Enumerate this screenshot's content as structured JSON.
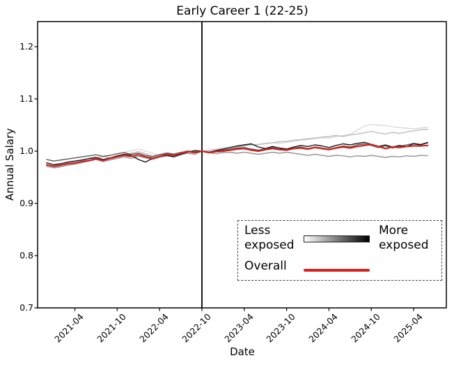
{
  "figure": {
    "background": "#ffffff"
  },
  "chart_data": {
    "type": "line",
    "title": "Early Career 1 (22-25)",
    "xlabel": "Date",
    "ylabel": "Annual Salary",
    "ylim": [
      0.7,
      1.248
    ],
    "yticks": [
      0.7,
      0.8,
      0.9,
      1.0,
      1.1,
      1.2
    ],
    "ytick_labels": [
      "0.7",
      "0.8",
      "0.9",
      "1.0",
      "1.1",
      "1.2"
    ],
    "grid": false,
    "x": [
      "2020-12",
      "2021-01",
      "2021-02",
      "2021-03",
      "2021-04",
      "2021-05",
      "2021-06",
      "2021-07",
      "2021-08",
      "2021-09",
      "2021-10",
      "2021-11",
      "2021-12",
      "2022-01",
      "2022-02",
      "2022-03",
      "2022-04",
      "2022-05",
      "2022-06",
      "2022-07",
      "2022-08",
      "2022-09",
      "2022-10",
      "2022-11",
      "2022-12",
      "2023-01",
      "2023-02",
      "2023-03",
      "2023-04",
      "2023-05",
      "2023-06",
      "2023-07",
      "2023-08",
      "2023-09",
      "2023-10",
      "2023-11",
      "2023-12",
      "2024-01",
      "2024-02",
      "2024-03",
      "2024-04",
      "2024-05",
      "2024-06",
      "2024-07",
      "2024-08",
      "2024-09",
      "2024-10",
      "2024-11",
      "2024-12",
      "2025-01",
      "2025-02",
      "2025-03",
      "2025-04",
      "2025-05",
      "2025-06"
    ],
    "x_ticks": {
      "labels": [
        "2021-04",
        "2021-10",
        "2022-04",
        "2022-10",
        "2023-04",
        "2023-10",
        "2024-04",
        "2024-10",
        "2025-04"
      ],
      "month_indices": [
        4,
        10,
        16,
        22,
        28,
        34,
        40,
        46,
        52
      ]
    },
    "event_line": {
      "month": "2022-10",
      "month_index": 22,
      "color": "#000000"
    },
    "series": [
      {
        "name": "exposure-q1-least-exposed",
        "color": "#d9d9d9",
        "width": 1.4,
        "values": [
          0.973,
          0.97,
          0.972,
          0.975,
          0.977,
          0.98,
          0.983,
          0.986,
          0.989,
          0.992,
          0.995,
          0.998,
          1.001,
          1.004,
          1.0,
          0.996,
          0.992,
          0.995,
          0.993,
          0.996,
          0.999,
          1.002,
          1.0,
          1.002,
          1.004,
          1.006,
          1.008,
          1.01,
          1.011,
          1.013,
          1.012,
          1.014,
          1.016,
          1.015,
          1.017,
          1.019,
          1.021,
          1.022,
          1.024,
          1.026,
          1.025,
          1.028,
          1.03,
          1.032,
          1.04,
          1.048,
          1.051,
          1.05,
          1.049,
          1.047,
          1.045,
          1.044,
          1.043,
          1.044,
          1.046
        ]
      },
      {
        "name": "exposure-q2",
        "color": "#bdbdbd",
        "width": 1.4,
        "values": [
          0.975,
          0.972,
          0.974,
          0.977,
          0.979,
          0.982,
          0.984,
          0.987,
          0.99,
          0.987,
          0.99,
          0.993,
          0.996,
          0.999,
          0.995,
          0.991,
          0.994,
          0.997,
          0.995,
          0.998,
          1.001,
          0.999,
          1.0,
          1.001,
          1.003,
          1.005,
          1.007,
          1.008,
          1.01,
          1.012,
          1.013,
          1.015,
          1.016,
          1.018,
          1.019,
          1.021,
          1.022,
          1.024,
          1.025,
          1.027,
          1.028,
          1.03,
          1.028,
          1.031,
          1.033,
          1.035,
          1.038,
          1.035,
          1.033,
          1.036,
          1.034,
          1.037,
          1.039,
          1.041,
          1.042
        ]
      },
      {
        "name": "exposure-q3",
        "color": "#969696",
        "width": 1.4,
        "values": [
          0.971,
          0.968,
          0.97,
          0.973,
          0.975,
          0.978,
          0.981,
          0.984,
          0.98,
          0.983,
          0.986,
          0.989,
          0.986,
          0.99,
          0.987,
          0.984,
          0.988,
          0.991,
          0.989,
          0.993,
          0.996,
          0.994,
          1.0,
          0.997,
          0.995,
          0.997,
          0.998,
          0.996,
          0.998,
          0.996,
          0.994,
          0.996,
          0.998,
          0.996,
          0.998,
          0.996,
          0.994,
          0.992,
          0.994,
          0.992,
          0.99,
          0.992,
          0.991,
          0.989,
          0.991,
          0.99,
          0.992,
          0.99,
          0.988,
          0.99,
          0.989,
          0.991,
          0.99,
          0.992,
          0.991
        ]
      },
      {
        "name": "exposure-q4",
        "color": "#585858",
        "width": 1.4,
        "values": [
          0.984,
          0.981,
          0.983,
          0.985,
          0.987,
          0.989,
          0.991,
          0.993,
          0.99,
          0.992,
          0.995,
          0.997,
          0.994,
          0.996,
          0.992,
          0.989,
          0.993,
          0.996,
          0.994,
          0.997,
          1.0,
          0.998,
          1.0,
          0.998,
          1.0,
          1.002,
          1.004,
          1.006,
          1.007,
          1.004,
          1.002,
          1.005,
          1.007,
          1.004,
          1.003,
          1.006,
          1.008,
          1.005,
          1.008,
          1.006,
          1.004,
          1.007,
          1.01,
          1.008,
          1.012,
          1.014,
          1.011,
          1.007,
          1.01,
          1.006,
          1.009,
          1.012,
          1.015,
          1.013,
          1.017
        ]
      },
      {
        "name": "exposure-q5-most-exposed",
        "color": "#161616",
        "width": 1.4,
        "values": [
          0.978,
          0.974,
          0.976,
          0.979,
          0.981,
          0.983,
          0.986,
          0.988,
          0.984,
          0.987,
          0.991,
          0.994,
          0.992,
          0.984,
          0.979,
          0.986,
          0.99,
          0.992,
          0.989,
          0.994,
          0.998,
          1.001,
          1.0,
          0.998,
          1.001,
          1.004,
          1.007,
          1.01,
          1.012,
          1.014,
          1.008,
          1.005,
          1.009,
          1.006,
          1.004,
          1.008,
          1.011,
          1.009,
          1.012,
          1.01,
          1.007,
          1.011,
          1.014,
          1.012,
          1.015,
          1.017,
          1.013,
          1.009,
          1.012,
          1.008,
          1.011,
          1.009,
          1.014,
          1.012,
          1.016
        ]
      },
      {
        "name": "overall",
        "color": "#d62020",
        "width": 2.2,
        "values": [
          0.974,
          0.971,
          0.973,
          0.976,
          0.977,
          0.98,
          0.982,
          0.985,
          0.982,
          0.986,
          0.989,
          0.992,
          0.99,
          0.993,
          0.989,
          0.986,
          0.99,
          0.994,
          0.992,
          0.996,
          0.999,
          0.997,
          1.0,
          0.997,
          0.999,
          1.0,
          1.002,
          1.004,
          1.005,
          1.002,
          1.0,
          1.003,
          1.005,
          1.003,
          1.002,
          1.005,
          1.006,
          1.004,
          1.007,
          1.005,
          1.003,
          1.006,
          1.008,
          1.006,
          1.009,
          1.011,
          1.013,
          1.009,
          1.005,
          1.008,
          1.007,
          1.009,
          1.01,
          1.01,
          1.011
        ]
      }
    ],
    "legend": {
      "less_label": "Less exposed",
      "more_label": "More exposed",
      "overall_label": "Overall",
      "gradient": [
        "#ffffff",
        "#000000"
      ],
      "overall_color": "#d62020",
      "position": "lower right",
      "border_style": "dashed"
    }
  }
}
